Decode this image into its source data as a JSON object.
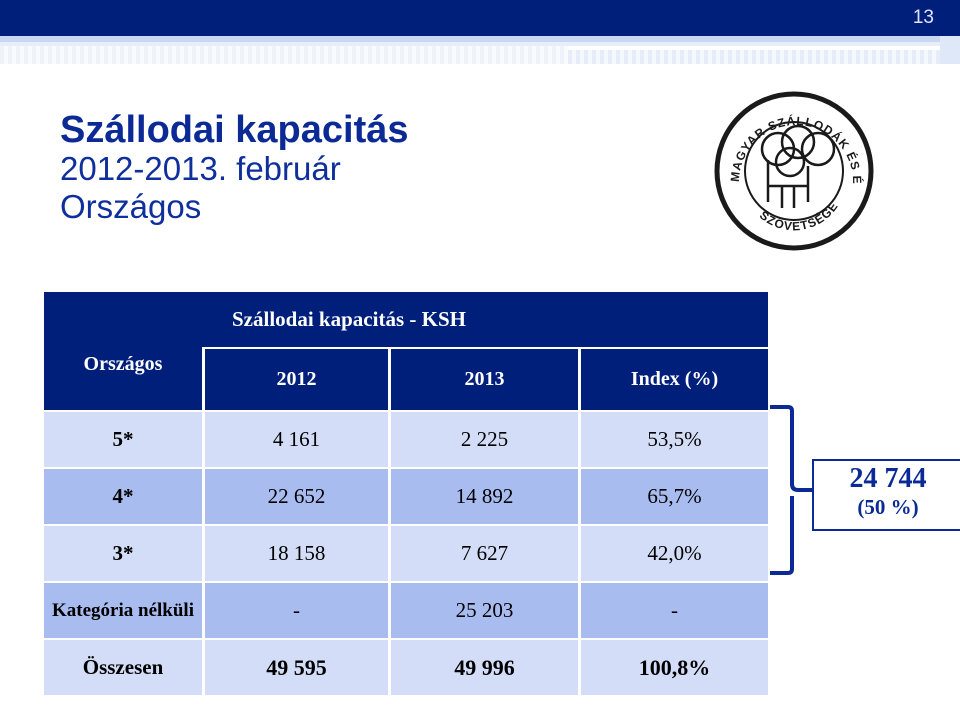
{
  "slide": {
    "number": "13"
  },
  "title": {
    "main": "Szállodai kapacitás",
    "line2": "2012-2013. február",
    "line3": "Országos"
  },
  "logo": {
    "text_top": "MAGYAR SZÁLLODÁK ÉS ÉTTERMEK",
    "text_bottom": "SZÖVETSÉGE"
  },
  "table": {
    "caption": "Szállodai kapacitás - KSH",
    "corner_label": "Országos",
    "columns": [
      "2012",
      "2013",
      "Index (%)"
    ],
    "rows": [
      {
        "label": "5*",
        "values": [
          "4 161",
          "2 225",
          "53,5%"
        ]
      },
      {
        "label": "4*",
        "values": [
          "22 652",
          "14 892",
          "65,7%"
        ]
      },
      {
        "label": "3*",
        "values": [
          "18 158",
          "7 627",
          "42,0%"
        ]
      },
      {
        "label": "Kategória nélküli",
        "values": [
          "-",
          "25 203",
          "-"
        ]
      },
      {
        "label": "Összesen",
        "values": [
          "49 595",
          "49 996",
          "100,8%"
        ]
      }
    ]
  },
  "callout": {
    "value": "24 744",
    "share": "(50 %)"
  },
  "colors": {
    "header_blue": "#001f7a",
    "row_light": "#d3ddf7",
    "row_mid": "#a9bcf0",
    "accent": "#0b2a96"
  }
}
